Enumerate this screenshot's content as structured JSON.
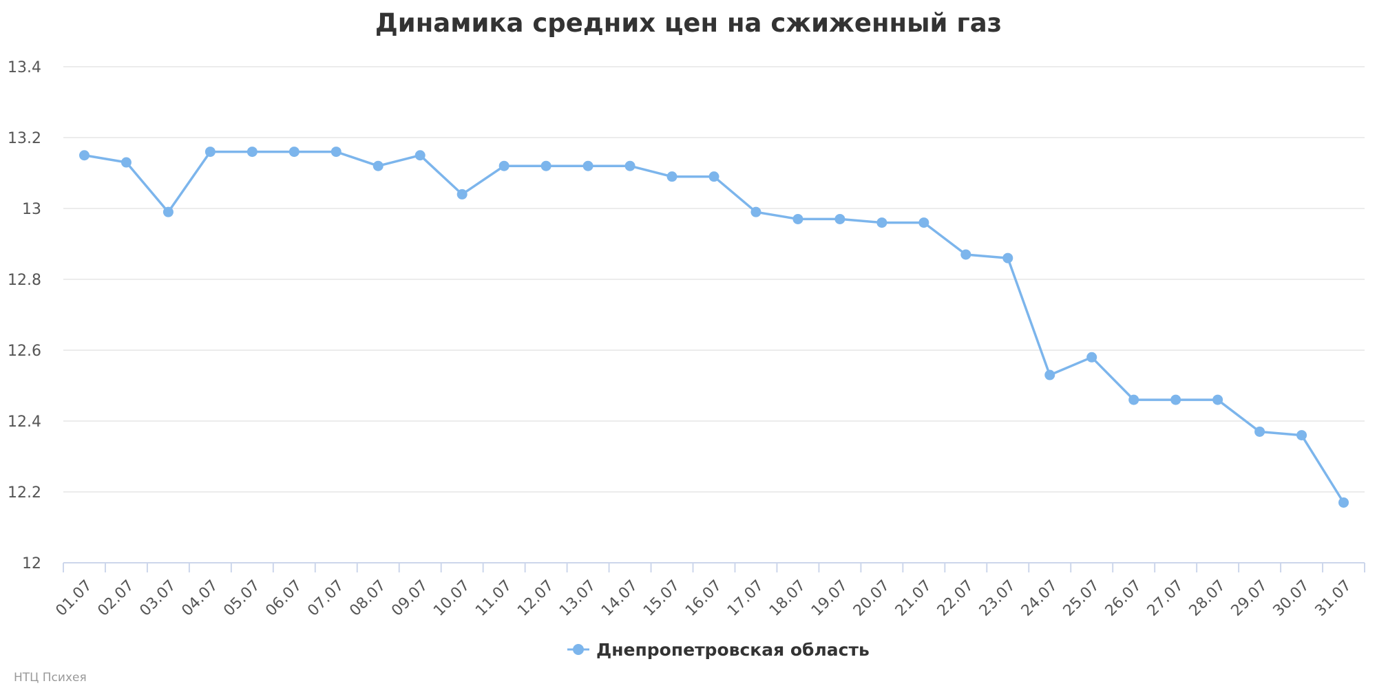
{
  "chart_data": {
    "type": "line",
    "title": "Динамика средних цен на сжиженный газ",
    "xlabel": "",
    "ylabel": "",
    "categories": [
      "01.07",
      "02.07",
      "03.07",
      "04.07",
      "05.07",
      "06.07",
      "07.07",
      "08.07",
      "09.07",
      "10.07",
      "11.07",
      "12.07",
      "13.07",
      "14.07",
      "15.07",
      "16.07",
      "17.07",
      "18.07",
      "19.07",
      "20.07",
      "21.07",
      "22.07",
      "23.07",
      "24.07",
      "25.07",
      "26.07",
      "27.07",
      "28.07",
      "29.07",
      "30.07",
      "31.07"
    ],
    "series": [
      {
        "name": "Днепропетровская область",
        "color": "#7cb5ec",
        "values": [
          13.15,
          13.13,
          12.99,
          13.16,
          13.16,
          13.16,
          13.16,
          13.12,
          13.15,
          13.04,
          13.12,
          13.12,
          13.12,
          13.12,
          13.09,
          13.09,
          12.99,
          12.97,
          12.97,
          12.96,
          12.96,
          12.87,
          12.86,
          12.53,
          12.58,
          12.46,
          12.46,
          12.46,
          12.37,
          12.36,
          12.17
        ]
      }
    ],
    "ylim": [
      12,
      13.4
    ],
    "yticks": [
      "12",
      "12.2",
      "12.4",
      "12.6",
      "12.8",
      "13",
      "13.2",
      "13.4"
    ],
    "grid": true,
    "legend_position": "bottom-center",
    "credits": "НТЦ Психея"
  }
}
